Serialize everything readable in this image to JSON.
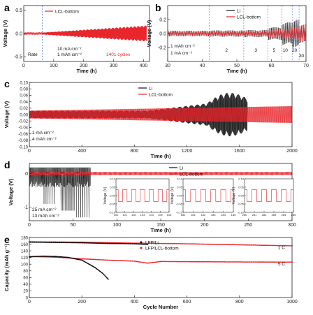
{
  "chart_data": [
    {
      "id": "a",
      "type": "line",
      "panel_label": "a",
      "xlabel": "Time (h)",
      "ylabel": "Voltage (V)",
      "xlim": [
        0,
        420
      ],
      "ylim": [
        -0.6,
        0.6
      ],
      "xticks": [
        "0",
        "100",
        "200",
        "300",
        "400"
      ],
      "yticks": [
        "-0.5",
        "0.0",
        "0.5"
      ],
      "legend": "top-left",
      "series": [
        {
          "name": "LCL-bottom",
          "color": "#e8242a",
          "start_amp": 0.02,
          "end_amp": 0.17
        }
      ],
      "annotations": [
        "Rate",
        "10 mA cm⁻²",
        "1 mAh cm⁻²",
        "1401 cycles"
      ],
      "vline_x": 62
    },
    {
      "id": "b",
      "type": "line",
      "panel_label": "b",
      "xlabel": "Time (h)",
      "ylabel": "Voltage (V)",
      "xlim": [
        30,
        70
      ],
      "ylim": [
        -0.4,
        0.4
      ],
      "xticks": [
        "30",
        "40",
        "50",
        "60",
        "70"
      ],
      "yticks": [
        "-0.2",
        "0.0",
        "0.2"
      ],
      "legend": "top-right",
      "series": [
        {
          "name": "Li",
          "color": "#111111"
        },
        {
          "name": "LCL-bottom",
          "color": "#e8242a"
        }
      ],
      "annotations": [
        "1 mAh cm⁻²",
        "1 mA cm⁻²",
        "2",
        "3",
        "5",
        "10",
        "20",
        "30"
      ],
      "steps": [
        {
          "x0": 30,
          "x1": 42,
          "rate": "1",
          "li_amp": 0.04,
          "lcl_amp": 0.03
        },
        {
          "x0": 42,
          "x1": 52,
          "rate": "2",
          "li_amp": 0.045,
          "lcl_amp": 0.035
        },
        {
          "x0": 52,
          "x1": 59,
          "rate": "3",
          "li_amp": 0.05,
          "lcl_amp": 0.04
        },
        {
          "x0": 59,
          "x1": 63,
          "rate": "5",
          "li_amp": 0.09,
          "lcl_amp": 0.05
        },
        {
          "x0": 63,
          "x1": 66,
          "rate": "10",
          "li_amp": 0.16,
          "lcl_amp": 0.07
        },
        {
          "x0": 66,
          "x1": 68,
          "rate": "20",
          "li_amp": 0.2,
          "lcl_amp": 0.09
        },
        {
          "x0": 68,
          "x1": 70,
          "rate": "30",
          "li_amp": 0.13,
          "lcl_amp": 0.11
        }
      ]
    },
    {
      "id": "c",
      "type": "line",
      "panel_label": "c",
      "xlabel": "Time (h)",
      "ylabel": "Voltage (V)",
      "xlim": [
        0,
        2000
      ],
      "ylim": [
        -0.1,
        0.1
      ],
      "xticks": [
        "0",
        "400",
        "800",
        "1200",
        "1600",
        "2000"
      ],
      "yticks": [
        "-0.10",
        "-0.08",
        "-0.06",
        "-0.04",
        "-0.02",
        "0.00",
        "0.02",
        "0.04",
        "0.06",
        "0.08",
        "0.10"
      ],
      "legend": "top-right",
      "series": [
        {
          "name": "Li",
          "color": "#111111",
          "end_x": 1660
        },
        {
          "name": "LCL-bottom",
          "color": "#e8242a",
          "end_x": 2000
        }
      ],
      "annotations": [
        "1 mA cm⁻²",
        "4 mAh cm⁻²"
      ]
    },
    {
      "id": "d",
      "type": "line",
      "panel_label": "d",
      "xlabel": "Time (h)",
      "ylabel": "Voltage (V)",
      "xlim": [
        0,
        300
      ],
      "ylim": [
        -1.4,
        0.3
      ],
      "xticks": [
        "0",
        "50",
        "100",
        "150",
        "200",
        "250",
        "300"
      ],
      "yticks": [
        "-1",
        "0"
      ],
      "legend": "top-right",
      "series": [
        {
          "name": "Li",
          "color": "#111111",
          "end_x": 70
        },
        {
          "name": "LCL-bottom",
          "color": "#e8242a",
          "end_x": 300
        }
      ],
      "annotations": [
        "25 mA cm⁻²",
        "13 mAh cm⁻²"
      ],
      "insets": [
        {
          "xticks": [
            "100",
            "101",
            "102",
            "103",
            "104",
            "105",
            "106"
          ],
          "yticks": [
            "-0.10",
            "-0.05",
            "0.00",
            "0.05",
            "0.10"
          ],
          "ylabel": "Voltage (V)"
        },
        {
          "xticks": [
            "180",
            "181",
            "182",
            "183",
            "184",
            "185"
          ],
          "yticks": [
            "-0.10",
            "-0.05",
            "0.00",
            "0.05",
            "0.10"
          ],
          "ylabel": "Voltage (V)"
        },
        {
          "xticks": [
            "280",
            "281",
            "282",
            "283",
            "284",
            "285"
          ],
          "yticks": [
            "-0.10",
            "-0.05",
            "0.00",
            "0.05",
            "0.10"
          ],
          "ylabel": "Voltage (V)"
        }
      ]
    },
    {
      "id": "e",
      "type": "scatter",
      "panel_label": "e",
      "xlabel": "Cycle Number",
      "ylabel": "Capacity (mAh g⁻¹)",
      "xlim": [
        0,
        1000
      ],
      "ylim": [
        0,
        180
      ],
      "xticks": [
        "0",
        "200",
        "400",
        "600",
        "800",
        "1000"
      ],
      "yticks": [
        "0",
        "20",
        "40",
        "60",
        "80",
        "100",
        "120",
        "140",
        "160",
        "180"
      ],
      "legend": "top-center",
      "series": [
        {
          "name": "LFP/Li",
          "color": "#111111",
          "points_1C": [
            [
              0,
              166
            ],
            [
              100,
              165
            ],
            [
              200,
              164
            ],
            [
              300,
              162
            ],
            [
              400,
              161
            ],
            [
              450,
              159
            ]
          ],
          "points_5C": [
            [
              0,
              122
            ],
            [
              50,
              124
            ],
            [
              100,
              123
            ],
            [
              150,
              120
            ],
            [
              200,
              112
            ],
            [
              250,
              90
            ],
            [
              280,
              72
            ],
            [
              300,
              55
            ]
          ]
        },
        {
          "name": "LFP/LCL-bottom",
          "color": "#e8242a",
          "points_1C": [
            [
              0,
              167
            ],
            [
              200,
              166
            ],
            [
              400,
              163
            ],
            [
              600,
              161
            ],
            [
              800,
              158
            ],
            [
              1000,
              155
            ]
          ],
          "points_5C": [
            [
              0,
              123
            ],
            [
              100,
              121
            ],
            [
              200,
              116
            ],
            [
              300,
              112
            ],
            [
              400,
              109
            ],
            [
              450,
              103
            ],
            [
              500,
              108
            ],
            [
              700,
              107
            ],
            [
              1000,
              106
            ]
          ]
        }
      ],
      "annotations": [
        "1 C",
        "5 C"
      ]
    }
  ]
}
